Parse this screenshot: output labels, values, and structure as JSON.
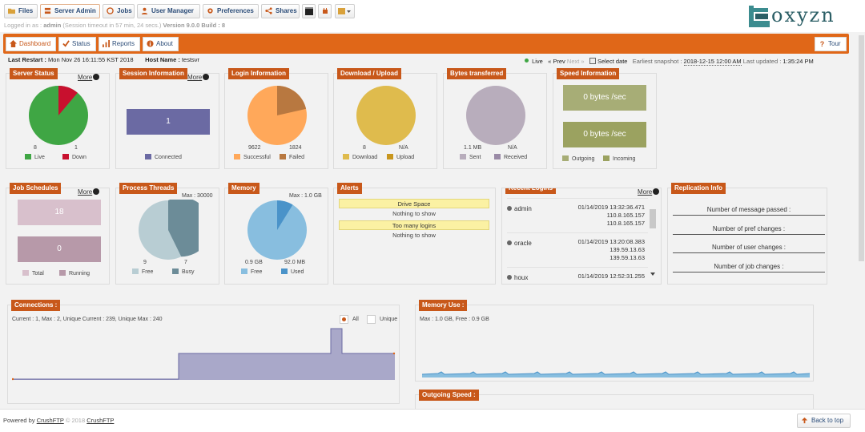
{
  "toolbar": {
    "files": "Files",
    "server_admin": "Server Admin",
    "jobs": "Jobs",
    "user_manager": "User Manager",
    "preferences": "Preferences",
    "shares": "Shares"
  },
  "login": {
    "prefix": "Logged in as :",
    "user": "admin",
    "timeout": "(Session timeout in 57 min, 24 secs.)",
    "version": "Version 9.0.0 Build : 8"
  },
  "logo": {
    "text": "oxyzn"
  },
  "nav": {
    "dashboard": "Dashboard",
    "status": "Status",
    "reports": "Reports",
    "about": "About",
    "tour": "Tour"
  },
  "info": {
    "last_restart_label": "Last Restart :",
    "last_restart": "Mon Nov 26 16:11:55 KST 2018",
    "host_label": "Host Name :",
    "host": "testsvr",
    "live": "Live",
    "prev": "« Prev",
    "next": "Next »",
    "select_date": "Select date",
    "earliest_label": "Earliest snapshot :",
    "earliest": "2018-12-15 12:00 AM",
    "updated_label": "Last updated :",
    "updated": "1:35:24 PM"
  },
  "more_label": "More",
  "server_status": {
    "title": "Server Status",
    "live": "8",
    "down": "1",
    "live_label": "Live",
    "down_label": "Down"
  },
  "session_info": {
    "title": "Session Information",
    "connected": "1",
    "connected_label": "Connected"
  },
  "login_info": {
    "title": "Login Information",
    "successful": "9622",
    "failed": "1824",
    "successful_label": "Successful",
    "failed_label": "Failed"
  },
  "download_upload": {
    "title": "Download / Upload",
    "download": "8",
    "upload": "N/A",
    "download_label": "Download",
    "upload_label": "Upload"
  },
  "bytes_transferred": {
    "title": "Bytes transferred",
    "sent": "1.1 MB",
    "received": "N/A",
    "sent_label": "Sent",
    "received_label": "Received"
  },
  "speed_info": {
    "title": "Speed Information",
    "outgoing_value": "0 bytes /sec",
    "incoming_value": "0 bytes /sec",
    "outgoing_label": "Outgoing",
    "incoming_label": "Incoming"
  },
  "job_schedules": {
    "title": "Job Schedules",
    "total": "18",
    "running": "0",
    "total_label": "Total",
    "running_label": "Running"
  },
  "process_threads": {
    "title": "Process Threads",
    "max": "Max : 30000",
    "free": "9",
    "busy": "7",
    "free_label": "Free",
    "busy_label": "Busy"
  },
  "memory": {
    "title": "Memory",
    "max": "Max : 1.0 GB",
    "free": "0.9 GB",
    "used": "92.0 MB",
    "free_label": "Free",
    "used_label": "Used"
  },
  "alerts": {
    "title": "Alerts",
    "items": [
      {
        "heading": "Drive Space",
        "text": "Nothing to show"
      },
      {
        "heading": "Too many logins",
        "text": "Nothing to show"
      }
    ]
  },
  "recent_logins": {
    "title": "Recent Logins",
    "items": [
      {
        "user": "admin",
        "time": "01/14/2019 13:32:36.471",
        "ip1": "110.8.165.157",
        "ip2": "110.8.165.157"
      },
      {
        "user": "oracle",
        "time": "01/14/2019 13:20:08.383",
        "ip1": "139.59.13.63",
        "ip2": "139.59.13.63"
      },
      {
        "user": "houx",
        "time": "01/14/2019 12:52:31.255",
        "ip1": "",
        "ip2": ""
      }
    ]
  },
  "replication": {
    "title": "Replication Info",
    "rows": [
      "Number of message passed :",
      "Number of pref changes :",
      "Number of user changes :",
      "Number of job changes :"
    ]
  },
  "connections": {
    "title": "Connections :",
    "summary": "Current : 1, Max : 2, Unique Current : 239, Unique Max : 240",
    "all_label": "All",
    "unique_label": "Unique"
  },
  "memory_use": {
    "title": "Memory Use :",
    "summary": "Max : 1.0 GB, Free : 0.9 GB"
  },
  "outgoing_speed": {
    "title": "Outgoing Speed :"
  },
  "footer": {
    "powered": "Powered by",
    "crushftp": "CrushFTP",
    "copyright": "© 2018",
    "crushftp2": "CrushFTP",
    "back_to_top": "Back to top"
  },
  "colors": {
    "accent": "#e06718",
    "live": "#3fa644",
    "down": "#c8102e",
    "session": "#6b6aa3",
    "success": "#ffa85a",
    "failed": "#b87840",
    "download": "#dfbb4d",
    "upload": "#c8961e",
    "sent": "#b8adbc",
    "received": "#9a8aa6",
    "speed": "#a7ad76",
    "total": "#d8c0cc",
    "running": "#b799a9",
    "thread_free": "#b8cdd3",
    "thread_busy": "#6c8c98",
    "mem_free": "#88bedf",
    "mem_used": "#4a93c9",
    "chart": "#a9a8c9"
  }
}
